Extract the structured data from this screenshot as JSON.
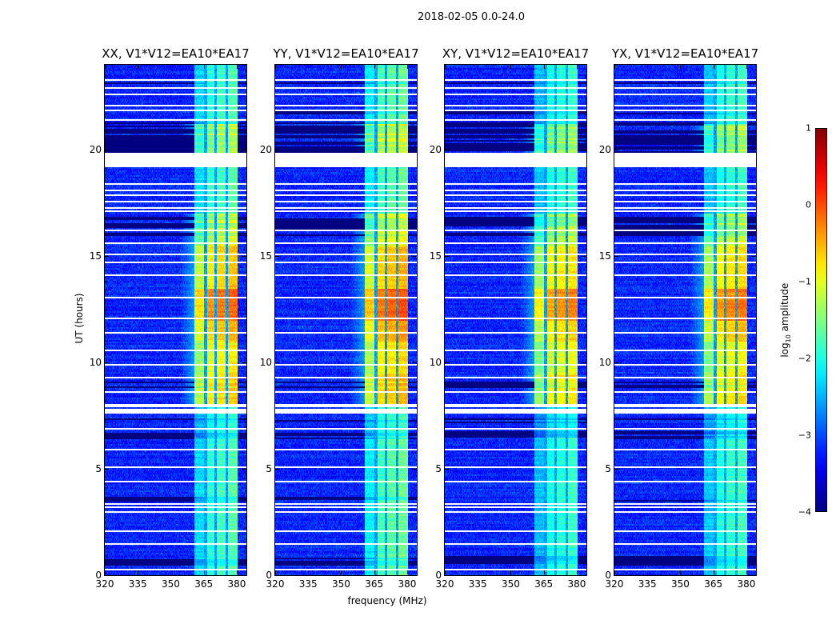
{
  "suptitle": "2018-02-05 0.0-24.0",
  "chart_data": {
    "type": "heatmap",
    "title": "2018-02-05 0.0-24.0",
    "xlabel": "frequency (MHz)",
    "ylabel": "UT (hours)",
    "xlim": [
      320,
      384.4
    ],
    "ylim": [
      0,
      24
    ],
    "xticks": [
      320,
      335,
      350,
      365,
      380
    ],
    "yticks": [
      0,
      5,
      10,
      15,
      20
    ],
    "panels": [
      {
        "title": "XX, V1*V12=EA10*EA17",
        "band_gain": 0.0
      },
      {
        "title": "YY, V1*V12=EA10*EA17",
        "band_gain": 0.1
      },
      {
        "title": "XY, V1*V12=EA10*EA17",
        "band_gain": -0.15
      },
      {
        "title": "YX, V1*V12=EA10*EA17",
        "band_gain": -0.1
      }
    ],
    "colorbar": {
      "label_main": "log",
      "label_sub": "10",
      "label_rest": " amplitude",
      "range": [
        -4,
        1
      ],
      "ticks": [
        1,
        0,
        -1,
        -2,
        -3,
        -4
      ],
      "tick_labels": [
        "1",
        "0",
        "−1",
        "−2",
        "−3",
        "−4"
      ],
      "colormap": "jet"
    },
    "background_level": -3.2,
    "band": {
      "freq_range": [
        360.7,
        380.4
      ],
      "subband_edges": [
        360.7,
        365.8,
        370.5,
        375.6,
        380.4
      ],
      "subband_offsets": [
        -0.6,
        -0.2,
        -0.1,
        0.0
      ]
    },
    "band_time_profile": [
      [
        0,
        6.5,
        -1.7
      ],
      [
        6.5,
        8,
        -1.9
      ],
      [
        8,
        9.5,
        -0.6
      ],
      [
        9.5,
        11,
        -0.8
      ],
      [
        11,
        12,
        -0.5
      ],
      [
        12,
        13.5,
        -0.1
      ],
      [
        13.5,
        15.5,
        -0.6
      ],
      [
        15.5,
        17,
        -1.0
      ],
      [
        17,
        19.2,
        -1.7
      ],
      [
        19.2,
        19.9,
        -1.7
      ],
      [
        19.9,
        21.2,
        -1.0
      ],
      [
        21.2,
        24,
        -1.7
      ]
    ],
    "flagged_blocks": [
      [
        19.2,
        19.9
      ],
      [
        7.65,
        7.85
      ],
      [
        7.95,
        8.05
      ]
    ],
    "flagged_rows": [
      0.3,
      1.5,
      2.1,
      3.0,
      3.2,
      3.4,
      4.4,
      5.1,
      5.9,
      6.9,
      8.6,
      9.3,
      9.9,
      10.6,
      11.4,
      12.1,
      13.1,
      14.1,
      14.7,
      15.1,
      15.6,
      16.2,
      17.1,
      17.3,
      17.6,
      17.9,
      18.1,
      18.4,
      21.4,
      21.9,
      22.1,
      22.6,
      22.9,
      23.3
    ],
    "dark_rows": [
      [
        0.5,
        0.9
      ],
      [
        3.5,
        3.7
      ],
      [
        6.4,
        6.8
      ],
      [
        7.2,
        7.4
      ],
      [
        8.8,
        9.1
      ],
      [
        16.0,
        16.9
      ],
      [
        19.9,
        21.3
      ],
      [
        21.7,
        21.9
      ],
      [
        23.1,
        23.2
      ]
    ]
  }
}
